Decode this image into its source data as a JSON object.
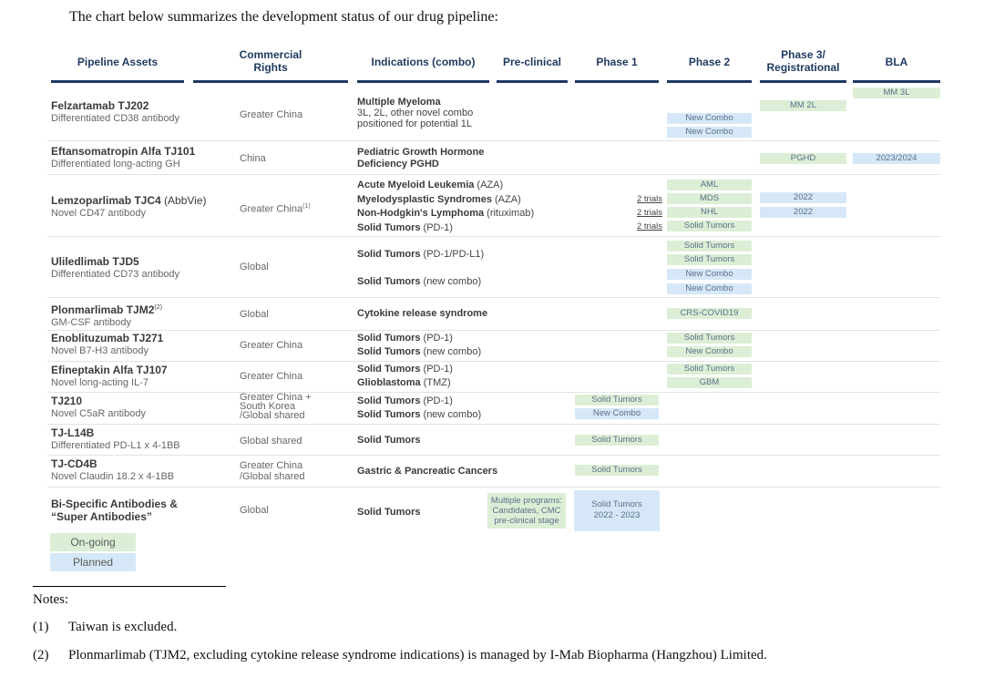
{
  "intro": "The chart below summarizes the development status of our drug pipeline:",
  "headers": {
    "assets": "Pipeline Assets",
    "rights_1": "Commercial",
    "rights_2": "Rights",
    "indications": "Indications (combo)",
    "preclinical": "Pre-clinical",
    "phase1": "Phase 1",
    "phase2": "Phase 2",
    "phase3_1": "Phase 3/",
    "phase3_2": "Registrational",
    "bla": "BLA"
  },
  "rows": {
    "felz": {
      "name": "Felzartamab TJ202",
      "desc": "Differentiated CD38 antibody",
      "rights": "Greater China",
      "ind_bold": "Multiple Myeloma",
      "ind_2": "3L, 2L, other novel combo",
      "ind_3": "positioned for potential 1L",
      "p2_1": "New Combo",
      "p2_2": "New Combo",
      "p3": "MM 2L",
      "bla": "MM 3L"
    },
    "eftan": {
      "name": "Eftansomatropin Alfa TJ101",
      "desc": "Differentiated long-acting GH",
      "rights": "China",
      "ind_1": "Pediatric Growth Hormone",
      "ind_2": "Deficiency PGHD",
      "p3": "PGHD",
      "bla": "2023/2024"
    },
    "lemz": {
      "name": "Lemzoparlimab TJC4",
      "name_suffix": " (AbbVie)",
      "desc": "Novel CD47 antibody",
      "rights": "Greater China",
      "rights_sup": "(1)",
      "ind_1": "Acute Myeloid Leukemia",
      "ind_1c": " (AZA)",
      "ind_2": "Myelodysplastic Syndromes",
      "ind_2c": " (AZA)",
      "ind_3": "Non-Hodgkin's Lymphoma",
      "ind_3c": " (rituximab)",
      "ind_4": "Solid Tumors",
      "ind_4c": " (PD-1)",
      "trials": "2 trials",
      "p2_1": "AML",
      "p2_2": "MDS",
      "p2_3": "NHL",
      "p2_4": "Solid Tumors",
      "p3_1": "2022",
      "p3_2": "2022"
    },
    "ulil": {
      "name": "Uliledlimab TJD5",
      "desc": "Differentiated CD73 antibody",
      "rights": "Global",
      "ind_1": "Solid Tumors",
      "ind_1c": " (PD-1/PD-L1)",
      "ind_2": "Solid Tumors",
      "ind_2c": " (new combo)",
      "p2_1": "Solid Tumors",
      "p2_2": "Solid Tumors",
      "p2_3": "New Combo",
      "p2_4": "New Combo"
    },
    "plon": {
      "name": "Plonmarlimab TJM2",
      "name_sup": "(2)",
      "desc": "GM-CSF antibody",
      "rights": "Global",
      "ind": "Cytokine release syndrome",
      "p2": "CRS-COVID19"
    },
    "enob": {
      "name": "Enoblituzumab TJ271",
      "desc": "Novel B7-H3 antibody",
      "rights": "Greater China",
      "ind_1": "Solid Tumors",
      "ind_1c": " (PD-1)",
      "ind_2": "Solid Tumors",
      "ind_2c": " (new combo)",
      "p2_1": "Solid Tumors",
      "p2_2": "New Combo"
    },
    "efin": {
      "name": "Efineptakin Alfa TJ107",
      "desc": "Novel long-acting IL-7",
      "rights": "Greater China",
      "ind_1": "Solid Tumors",
      "ind_1c": " (PD-1)",
      "ind_2": "Glioblastoma",
      "ind_2c": " (TMZ)",
      "p2_1": "Solid Tumors",
      "p2_2": "GBM"
    },
    "tj210": {
      "name": "TJ210",
      "desc": "Novel C5aR antibody",
      "rights_1": "Greater China +",
      "rights_2": "South Korea",
      "rights_3": "/Global shared",
      "ind_1": "Solid Tumors",
      "ind_1c": " (PD-1)",
      "ind_2": "Solid Tumors",
      "ind_2c": " (new combo)",
      "p1_1": "Solid Tumors",
      "p1_2": "New Combo"
    },
    "l14b": {
      "name": "TJ-L14B",
      "desc": "Differentiated PD-L1 x 4-1BB",
      "rights": "Global shared",
      "ind": "Solid Tumors",
      "p1": "Solid Tumors"
    },
    "cd4b": {
      "name": "TJ-CD4B",
      "desc": "Novel Claudin 18.2 x 4-1BB",
      "rights_1": "Greater China",
      "rights_2": "/Global shared",
      "ind": "Gastric & Pancreatic Cancers",
      "p1": "Solid Tumors"
    },
    "bisp": {
      "name_1": "Bi-Specific Antibodies &",
      "name_2": "“Super Antibodies”",
      "rights": "Global",
      "ind": "Solid Tumors",
      "pre_1": "Multiple programs:",
      "pre_2": "Candidates, CMC",
      "pre_3": "pre-clinical stage",
      "p1_1": "Solid Tumors",
      "p1_2": "2022 - 2023"
    }
  },
  "legend": {
    "ongoing": "On-going",
    "planned": "Planned"
  },
  "notes": {
    "title": "Notes:",
    "n1_num": "(1)",
    "n1": "Taiwan is excluded.",
    "n2_num": "(2)",
    "n2": "Plonmarlimab (TJM2, excluding cytokine release syndrome indications) is managed by I-Mab Biopharma (Hangzhou) Limited."
  },
  "colors": {
    "ongoing": "#dcefd6",
    "planned": "#d6e8f7",
    "header_bar": "#1f3864",
    "header_text": "#1f3a5f"
  }
}
